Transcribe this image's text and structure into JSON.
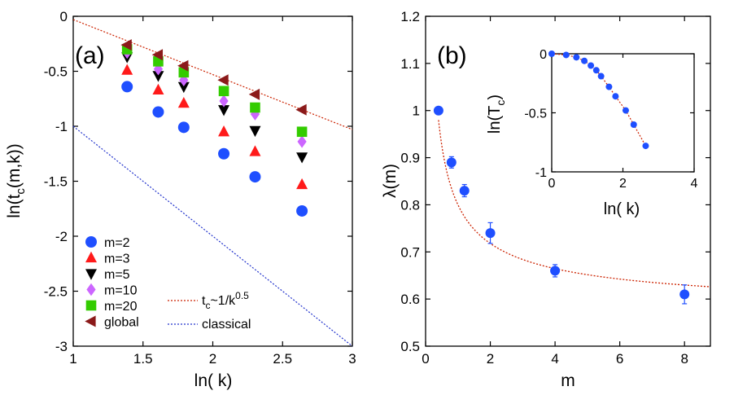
{
  "chart_data": [
    {
      "panel": "(a)",
      "type": "scatter",
      "xlabel": "ln( k)",
      "ylabel": "ln(t_c(m,k))",
      "xlim": [
        1,
        3
      ],
      "ylim": [
        -3,
        0
      ],
      "xticks": [
        "1",
        "1.5",
        "2",
        "2.5",
        "3"
      ],
      "yticks": [
        "0",
        "-0.5",
        "-1",
        "-1.5",
        "-2",
        "-2.5",
        "-3"
      ],
      "x": [
        1.386,
        1.609,
        1.792,
        2.079,
        2.303,
        2.639
      ],
      "series": [
        {
          "name": "m=2",
          "marker": "circle",
          "color": "#1f4fff",
          "values": [
            -0.64,
            -0.87,
            -1.01,
            -1.25,
            -1.46,
            -1.77
          ]
        },
        {
          "name": "m=3",
          "marker": "triangle-up",
          "color": "#ff1a1a",
          "values": [
            -0.49,
            -0.67,
            -0.79,
            -1.05,
            -1.23,
            -1.53
          ]
        },
        {
          "name": "m=5",
          "marker": "triangle-down",
          "color": "#000000",
          "values": [
            -0.37,
            -0.54,
            -0.64,
            -0.85,
            -1.04,
            -1.28
          ]
        },
        {
          "name": "m=10",
          "marker": "diamond",
          "color": "#cc66ff",
          "values": [
            -0.33,
            -0.48,
            -0.58,
            -0.77,
            -0.89,
            -1.14
          ]
        },
        {
          "name": "m=20",
          "marker": "square",
          "color": "#33cc00",
          "values": [
            -0.3,
            -0.41,
            -0.51,
            -0.68,
            -0.83,
            -1.05
          ]
        },
        {
          "name": "global",
          "marker": "triangle-left",
          "color": "#8b1a1a",
          "values": [
            -0.26,
            -0.35,
            -0.45,
            -0.58,
            -0.71,
            -0.85
          ]
        }
      ],
      "lines": [
        {
          "name": "t_c~1/k^0.5",
          "style": "dotted",
          "color": "#cc2200",
          "x": [
            1,
            3
          ],
          "y": [
            -0.03,
            -1.03
          ]
        },
        {
          "name": "classical",
          "style": "dotted",
          "color": "#2233cc",
          "x": [
            1,
            3
          ],
          "y": [
            -1.0,
            -3.0
          ]
        }
      ],
      "legend": {
        "position": "bottom-left",
        "markers": [
          "m=2",
          "m=3",
          "m=5",
          "m=10",
          "m=20",
          "global"
        ],
        "line_label_1_base": "t",
        "line_label_1_sub": "c",
        "line_label_1_mid": "~1/k",
        "line_label_1_sup": "0.5",
        "line_label_2": "classical"
      }
    },
    {
      "panel": "(b)",
      "type": "scatter",
      "xlabel": "m",
      "ylabel": "λ(m)",
      "xlim": [
        0,
        8.8
      ],
      "ylim": [
        0.5,
        1.2
      ],
      "xticks": [
        "0",
        "2",
        "4",
        "6",
        "8"
      ],
      "yticks": [
        "0.5",
        "0.6",
        "0.7",
        "0.8",
        "0.9",
        "1",
        "1.1",
        "1.2"
      ],
      "series": [
        {
          "name": "λ(m)",
          "color": "#1f4fff",
          "x": [
            0.4,
            0.8,
            1.2,
            2.0,
            4.0,
            8.0
          ],
          "values": [
            1.0,
            0.89,
            0.83,
            0.74,
            0.66,
            0.61
          ],
          "errors": [
            0.0,
            0.012,
            0.013,
            0.022,
            0.013,
            0.02
          ]
        }
      ],
      "fit_curve": {
        "style": "dotted",
        "color": "#cc2200",
        "x_start": 0.4,
        "x_end": 8.8
      },
      "inset": {
        "type": "scatter",
        "xlabel": "ln( k)",
        "ylabel_base": "ln(T",
        "ylabel_sub": "c",
        "ylabel_end": ")",
        "xlim": [
          0,
          4
        ],
        "ylim": [
          -1,
          0
        ],
        "xticks": [
          "0",
          "2",
          "4"
        ],
        "yticks": [
          "0",
          "-0.5",
          "-1"
        ],
        "x": [
          0.0,
          0.405,
          0.693,
          0.916,
          1.099,
          1.253,
          1.386,
          1.609,
          1.792,
          2.079,
          2.303,
          2.639
        ],
        "values": [
          0.0,
          -0.01,
          -0.03,
          -0.06,
          -0.1,
          -0.14,
          -0.19,
          -0.28,
          -0.36,
          -0.48,
          -0.6,
          -0.78
        ],
        "color": "#1f4fff",
        "line_color": "#cc2200"
      }
    }
  ],
  "labels": {
    "panel_a": "(a)",
    "panel_b": "(b)",
    "a_xlabel": "ln( k)",
    "a_ylabel_1": "ln(t",
    "a_ylabel_sub": "c",
    "a_ylabel_2": "(m,k))",
    "b_xlabel": "m",
    "b_ylabel": "λ(m)",
    "inset_xlabel": "ln( k)"
  }
}
